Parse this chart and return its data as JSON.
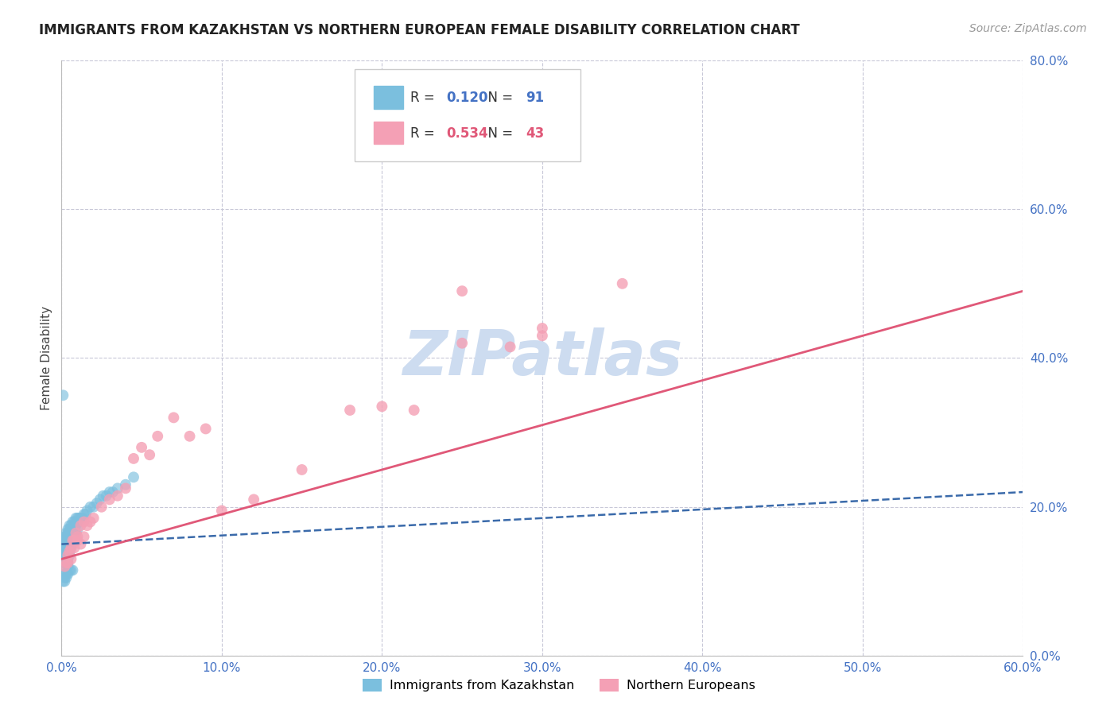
{
  "title": "IMMIGRANTS FROM KAZAKHSTAN VS NORTHERN EUROPEAN FEMALE DISABILITY CORRELATION CHART",
  "source": "Source: ZipAtlas.com",
  "ylabel": "Female Disability",
  "xlim": [
    0.0,
    0.6
  ],
  "ylim": [
    0.0,
    0.8
  ],
  "xtick_vals": [
    0.0,
    0.1,
    0.2,
    0.3,
    0.4,
    0.5,
    0.6
  ],
  "ytick_vals": [
    0.0,
    0.2,
    0.4,
    0.6,
    0.8
  ],
  "kazakhstan_R": 0.12,
  "kazakhstan_N": 91,
  "northern_R": 0.534,
  "northern_N": 43,
  "kaz_color": "#7bbfde",
  "nor_color": "#f4a0b5",
  "kaz_line_color": "#3a6aaa",
  "nor_line_color": "#e05878",
  "tick_color": "#4472c4",
  "grid_color": "#c8c8d8",
  "bg_color": "#ffffff",
  "watermark_color": "#cddcf0",
  "kaz_x": [
    0.001,
    0.001,
    0.001,
    0.001,
    0.001,
    0.002,
    0.002,
    0.002,
    0.002,
    0.002,
    0.002,
    0.002,
    0.002,
    0.003,
    0.003,
    0.003,
    0.003,
    0.003,
    0.003,
    0.003,
    0.003,
    0.003,
    0.004,
    0.004,
    0.004,
    0.004,
    0.004,
    0.004,
    0.004,
    0.004,
    0.004,
    0.004,
    0.004,
    0.005,
    0.005,
    0.005,
    0.005,
    0.005,
    0.005,
    0.005,
    0.005,
    0.006,
    0.006,
    0.006,
    0.006,
    0.006,
    0.006,
    0.007,
    0.007,
    0.007,
    0.007,
    0.007,
    0.008,
    0.008,
    0.008,
    0.008,
    0.009,
    0.009,
    0.009,
    0.01,
    0.01,
    0.01,
    0.011,
    0.011,
    0.012,
    0.013,
    0.014,
    0.015,
    0.016,
    0.018,
    0.02,
    0.022,
    0.024,
    0.026,
    0.028,
    0.03,
    0.032,
    0.035,
    0.04,
    0.045,
    0.001,
    0.001,
    0.002,
    0.002,
    0.002,
    0.003,
    0.003,
    0.004,
    0.005,
    0.006,
    0.007
  ],
  "kaz_y": [
    0.155,
    0.145,
    0.14,
    0.13,
    0.12,
    0.16,
    0.155,
    0.15,
    0.145,
    0.14,
    0.135,
    0.13,
    0.125,
    0.165,
    0.16,
    0.155,
    0.15,
    0.145,
    0.14,
    0.135,
    0.13,
    0.125,
    0.17,
    0.165,
    0.16,
    0.155,
    0.15,
    0.145,
    0.14,
    0.135,
    0.13,
    0.125,
    0.12,
    0.175,
    0.17,
    0.165,
    0.155,
    0.15,
    0.145,
    0.14,
    0.135,
    0.175,
    0.165,
    0.16,
    0.155,
    0.15,
    0.145,
    0.18,
    0.17,
    0.165,
    0.16,
    0.155,
    0.18,
    0.175,
    0.165,
    0.16,
    0.185,
    0.175,
    0.165,
    0.185,
    0.18,
    0.17,
    0.185,
    0.18,
    0.185,
    0.185,
    0.19,
    0.19,
    0.195,
    0.2,
    0.2,
    0.205,
    0.21,
    0.215,
    0.215,
    0.22,
    0.22,
    0.225,
    0.23,
    0.24,
    0.35,
    0.1,
    0.1,
    0.105,
    0.11,
    0.105,
    0.11,
    0.11,
    0.115,
    0.115,
    0.115
  ],
  "nor_x": [
    0.002,
    0.003,
    0.004,
    0.005,
    0.006,
    0.007,
    0.008,
    0.009,
    0.01,
    0.012,
    0.014,
    0.016,
    0.018,
    0.02,
    0.025,
    0.03,
    0.035,
    0.04,
    0.045,
    0.05,
    0.055,
    0.06,
    0.07,
    0.08,
    0.09,
    0.1,
    0.12,
    0.15,
    0.18,
    0.2,
    0.22,
    0.25,
    0.28,
    0.3,
    0.004,
    0.006,
    0.008,
    0.01,
    0.012,
    0.014,
    0.25,
    0.3,
    0.35
  ],
  "nor_y": [
    0.12,
    0.125,
    0.135,
    0.14,
    0.145,
    0.155,
    0.155,
    0.165,
    0.16,
    0.175,
    0.18,
    0.175,
    0.18,
    0.185,
    0.2,
    0.21,
    0.215,
    0.225,
    0.265,
    0.28,
    0.27,
    0.295,
    0.32,
    0.295,
    0.305,
    0.195,
    0.21,
    0.25,
    0.33,
    0.335,
    0.33,
    0.42,
    0.415,
    0.44,
    0.125,
    0.13,
    0.145,
    0.155,
    0.15,
    0.16,
    0.49,
    0.43,
    0.5
  ],
  "kaz_trend_x": [
    0.0,
    0.6
  ],
  "kaz_trend_y": [
    0.15,
    0.22
  ],
  "nor_trend_x": [
    0.0,
    0.6
  ],
  "nor_trend_y": [
    0.13,
    0.49
  ],
  "legend_r1_text": "R = ",
  "legend_r1_val": "0.120",
  "legend_r1_n_text": "N = ",
  "legend_r1_n_val": "91",
  "legend_r2_text": "R = ",
  "legend_r2_val": "0.534",
  "legend_r2_n_text": "N = ",
  "legend_r2_n_val": "43"
}
